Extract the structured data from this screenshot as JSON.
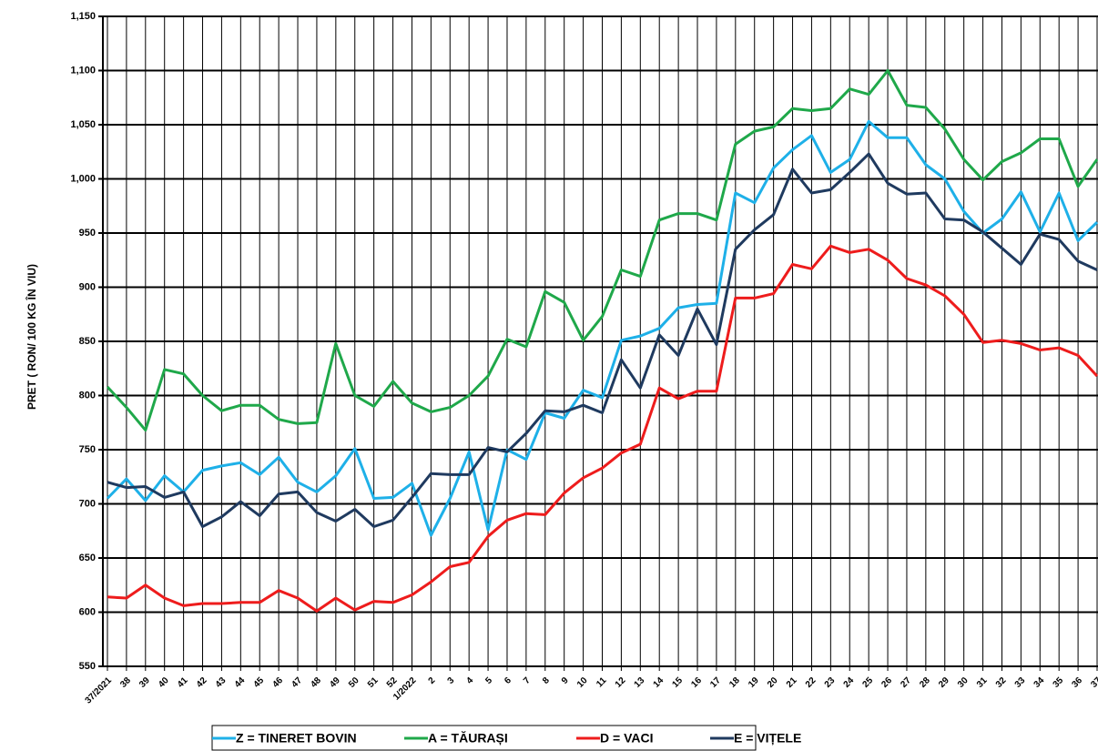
{
  "chart_data": {
    "type": "line",
    "y_label": "PRET ( RON/ 100 KG ÎN VIU)",
    "categories": [
      "37/2021",
      "38",
      "39",
      "40",
      "41",
      "42",
      "43",
      "44",
      "45",
      "46",
      "47",
      "48",
      "49",
      "50",
      "51",
      "52",
      "1/2022",
      "2",
      "3",
      "4",
      "5",
      "6",
      "7",
      "8",
      "9",
      "10",
      "11",
      "12",
      "13",
      "14",
      "15",
      "16",
      "17",
      "18",
      "19",
      "20",
      "21",
      "22",
      "23",
      "24",
      "25",
      "26",
      "27",
      "28",
      "29",
      "30",
      "31",
      "32",
      "33",
      "34",
      "35",
      "36",
      "37"
    ],
    "ylim": [
      550,
      1150
    ],
    "yticks": [
      550,
      600,
      650,
      700,
      750,
      800,
      850,
      900,
      950,
      {
        "value": 1000,
        "label": "1,000"
      },
      {
        "value": 1050,
        "label": "1,050"
      },
      {
        "value": 1100,
        "label": "1,100"
      },
      {
        "value": 1150,
        "label": "1,150"
      }
    ],
    "grid": true,
    "legend": "bottom",
    "series": [
      {
        "name": "Z  = TINERET BOVIN",
        "color": "#1eb0e8",
        "values": [
          705,
          723,
          703,
          726,
          711,
          731,
          735,
          738,
          727,
          743,
          720,
          711,
          726,
          751,
          705,
          706,
          719,
          671,
          705,
          748,
          676,
          750,
          741,
          784,
          779,
          805,
          798,
          851,
          855,
          862,
          881,
          884,
          885,
          987,
          978,
          1010,
          1027,
          1040,
          1006,
          1018,
          1053,
          1038,
          1038,
          1013,
          1000,
          970,
          950,
          963,
          988,
          951,
          987,
          943,
          960
        ]
      },
      {
        "name": "A = TĂURAȘI",
        "color": "#1fa84a",
        "values": [
          808,
          789,
          768,
          824,
          820,
          800,
          786,
          791,
          791,
          778,
          774,
          775,
          848,
          800,
          790,
          813,
          793,
          785,
          789,
          800,
          818,
          852,
          845,
          896,
          886,
          851,
          873,
          916,
          910,
          962,
          968,
          968,
          962,
          1032,
          1044,
          1048,
          1065,
          1063,
          1065,
          1083,
          1078,
          1100,
          1068,
          1066,
          1046,
          1018,
          999,
          1016,
          1024,
          1037,
          1037,
          993,
          1018
        ]
      },
      {
        "name": "D = VACI",
        "color": "#ee1c1c",
        "values": [
          614,
          613,
          625,
          613,
          606,
          608,
          608,
          609,
          609,
          620,
          613,
          601,
          613,
          602,
          610,
          609,
          616,
          628,
          642,
          646,
          670,
          685,
          691,
          690,
          710,
          724,
          733,
          747,
          755,
          807,
          797,
          804,
          804,
          890,
          890,
          894,
          921,
          917,
          938,
          932,
          935,
          925,
          908,
          902,
          892,
          875,
          849,
          851,
          848,
          842,
          844,
          837,
          818
        ]
      },
      {
        "name": "E = VIȚELE",
        "color": "#1f3a5f",
        "values": [
          720,
          715,
          716,
          706,
          711,
          679,
          688,
          702,
          689,
          709,
          711,
          692,
          684,
          695,
          679,
          685,
          706,
          728,
          727,
          727,
          752,
          748,
          765,
          786,
          785,
          791,
          784,
          833,
          807,
          856,
          837,
          880,
          847,
          935,
          953,
          967,
          1009,
          987,
          990,
          1006,
          1023,
          996,
          986,
          987,
          963,
          962,
          951,
          936,
          921,
          949,
          944,
          924,
          916
        ]
      }
    ]
  }
}
